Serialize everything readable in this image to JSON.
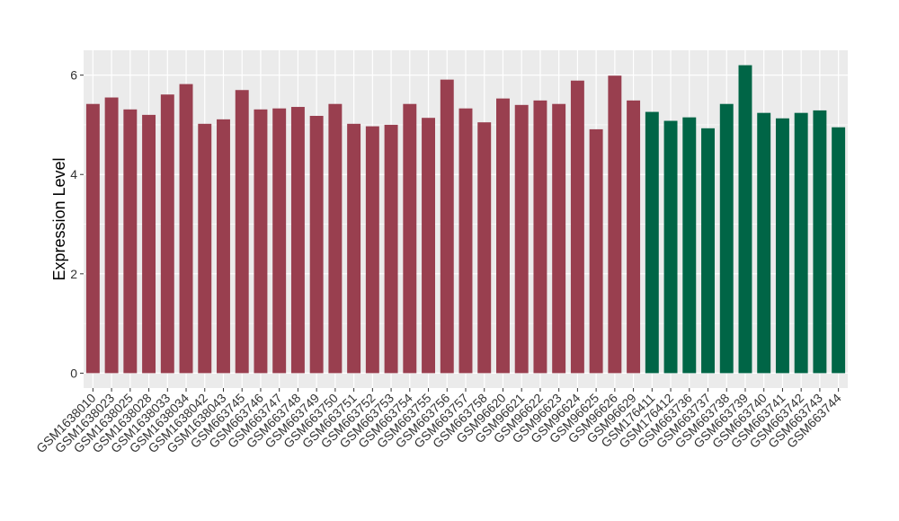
{
  "chart_data": {
    "type": "bar",
    "title": "",
    "xlabel": "",
    "ylabel": "Expression Level",
    "ylim": [
      -0.3,
      6.5
    ],
    "yticks": [
      0,
      2,
      4,
      6
    ],
    "grid": true,
    "legend": "none",
    "panel_background": "#ebebeb",
    "grid_color": "#ffffff",
    "categories": [
      "GSM1638010",
      "GSM1638023",
      "GSM1638025",
      "GSM1638028",
      "GSM1638033",
      "GSM1638034",
      "GSM1638042",
      "GSM1638043",
      "GSM663745",
      "GSM663746",
      "GSM663747",
      "GSM663748",
      "GSM663749",
      "GSM663750",
      "GSM663751",
      "GSM663752",
      "GSM663753",
      "GSM663754",
      "GSM663755",
      "GSM663756",
      "GSM663757",
      "GSM663758",
      "GSM96620",
      "GSM96621",
      "GSM96622",
      "GSM96623",
      "GSM96624",
      "GSM96625",
      "GSM96626",
      "GSM96629",
      "GSM176411",
      "GSM176412",
      "GSM663736",
      "GSM663737",
      "GSM663738",
      "GSM663739",
      "GSM663740",
      "GSM663741",
      "GSM663742",
      "GSM663743",
      "GSM663744"
    ],
    "values": [
      5.42,
      5.55,
      5.31,
      5.2,
      5.61,
      5.82,
      5.02,
      5.11,
      5.7,
      5.31,
      5.33,
      5.36,
      5.18,
      5.42,
      5.02,
      4.97,
      5.0,
      5.42,
      5.14,
      5.91,
      5.33,
      5.05,
      5.53,
      5.4,
      5.49,
      5.42,
      5.89,
      4.91,
      5.99,
      5.49,
      5.26,
      5.08,
      5.15,
      4.93,
      5.42,
      6.2,
      5.24,
      5.13,
      5.24,
      5.29,
      4.95
    ],
    "colors": [
      "#993f4f",
      "#993f4f",
      "#993f4f",
      "#993f4f",
      "#993f4f",
      "#993f4f",
      "#993f4f",
      "#993f4f",
      "#993f4f",
      "#993f4f",
      "#993f4f",
      "#993f4f",
      "#993f4f",
      "#993f4f",
      "#993f4f",
      "#993f4f",
      "#993f4f",
      "#993f4f",
      "#993f4f",
      "#993f4f",
      "#993f4f",
      "#993f4f",
      "#993f4f",
      "#993f4f",
      "#993f4f",
      "#993f4f",
      "#993f4f",
      "#993f4f",
      "#993f4f",
      "#993f4f",
      "#006546",
      "#006546",
      "#006546",
      "#006546",
      "#006546",
      "#006546",
      "#006546",
      "#006546",
      "#006546",
      "#006546",
      "#006546"
    ]
  }
}
